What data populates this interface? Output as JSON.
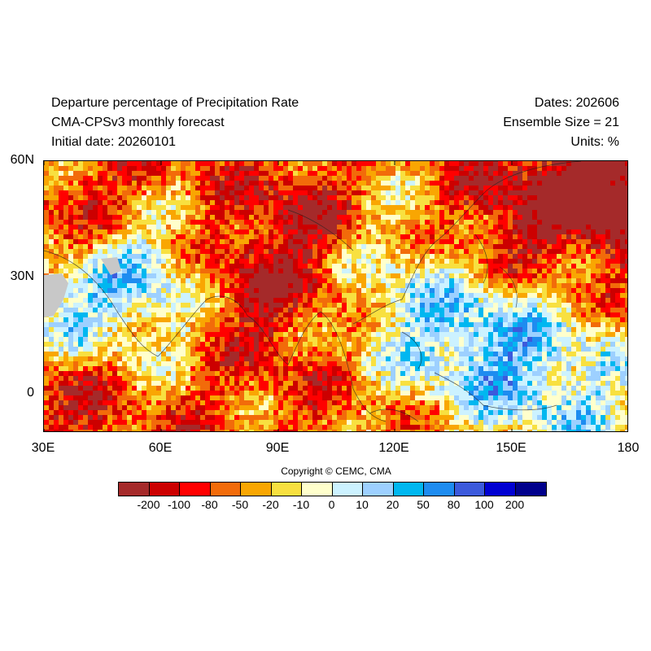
{
  "header": {
    "title": "Departure percentage of Precipitation Rate",
    "model": "CMA-CPSv3 monthly forecast",
    "initial": "Initial date: 20260101",
    "dates": "Dates: 202606",
    "ensemble": "Ensemble Size = 21",
    "units": "Units: %"
  },
  "map": {
    "lat_labels": [
      "60N",
      "30N",
      "0"
    ],
    "lon_labels": [
      "30E",
      "60E",
      "90E",
      "120E",
      "150E",
      "180"
    ],
    "lon_range": [
      30,
      180
    ],
    "lat_range": [
      -10,
      60
    ],
    "land_mask_color": "#c8c8c8"
  },
  "copyright": "Copyright © CEMC, CMA",
  "colorbar": {
    "colors": [
      "#a52a2a",
      "#cc0000",
      "#ff0000",
      "#f26b0a",
      "#f9a602",
      "#f8e040",
      "#ffffcc",
      "#ccf2ff",
      "#9dd0ff",
      "#00b7f0",
      "#1e8cf0",
      "#3c5adc",
      "#0000d2",
      "#00008c"
    ],
    "labels": [
      "-200",
      "-100",
      "-80",
      "-50",
      "-20",
      "-10",
      "0",
      "10",
      "20",
      "50",
      "80",
      "100",
      "200"
    ]
  }
}
